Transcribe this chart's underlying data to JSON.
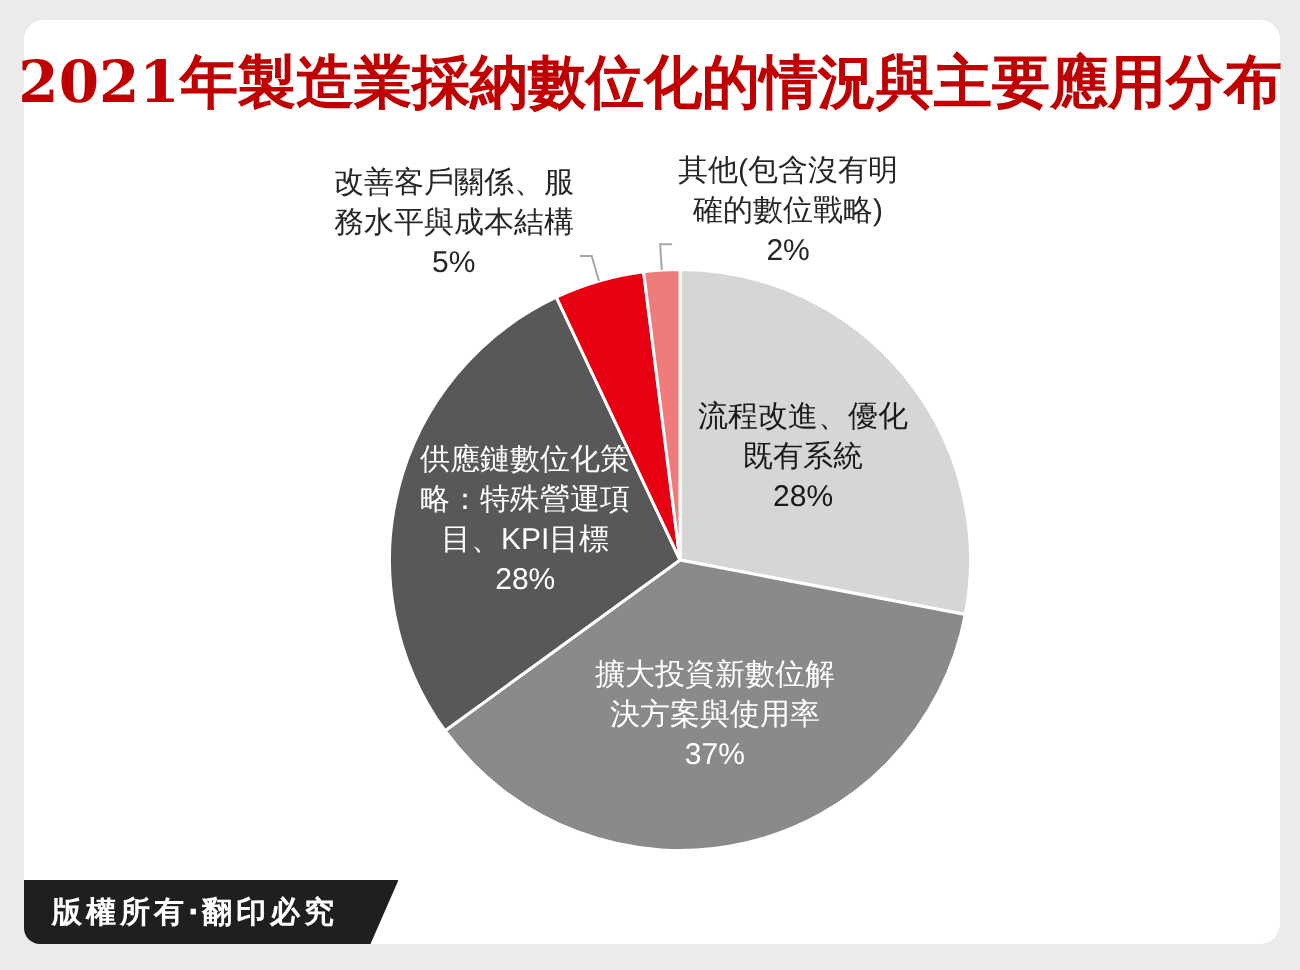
{
  "chart_data": {
    "type": "pie",
    "title": "2021年製造業採納數位化的情況與主要應用分布",
    "categories": [
      "流程改進、優化既有系統",
      "擴大投資新數位解決方案與使用率",
      "供應鏈數位化策略：特殊營運項目、KPI目標",
      "改善客戶關係、服務水平與成本結構",
      "其他(包含沒有明確的數位戰略)"
    ],
    "values": [
      28,
      37,
      28,
      5,
      2
    ],
    "colors": [
      "#d6d6d6",
      "#8a8a8a",
      "#585858",
      "#e60012",
      "#ef7b7b"
    ],
    "value_labels": [
      "28%",
      "37%",
      "28%",
      "5%",
      "2%"
    ],
    "annotations": [
      "版權所有‧翻印必究"
    ]
  }
}
